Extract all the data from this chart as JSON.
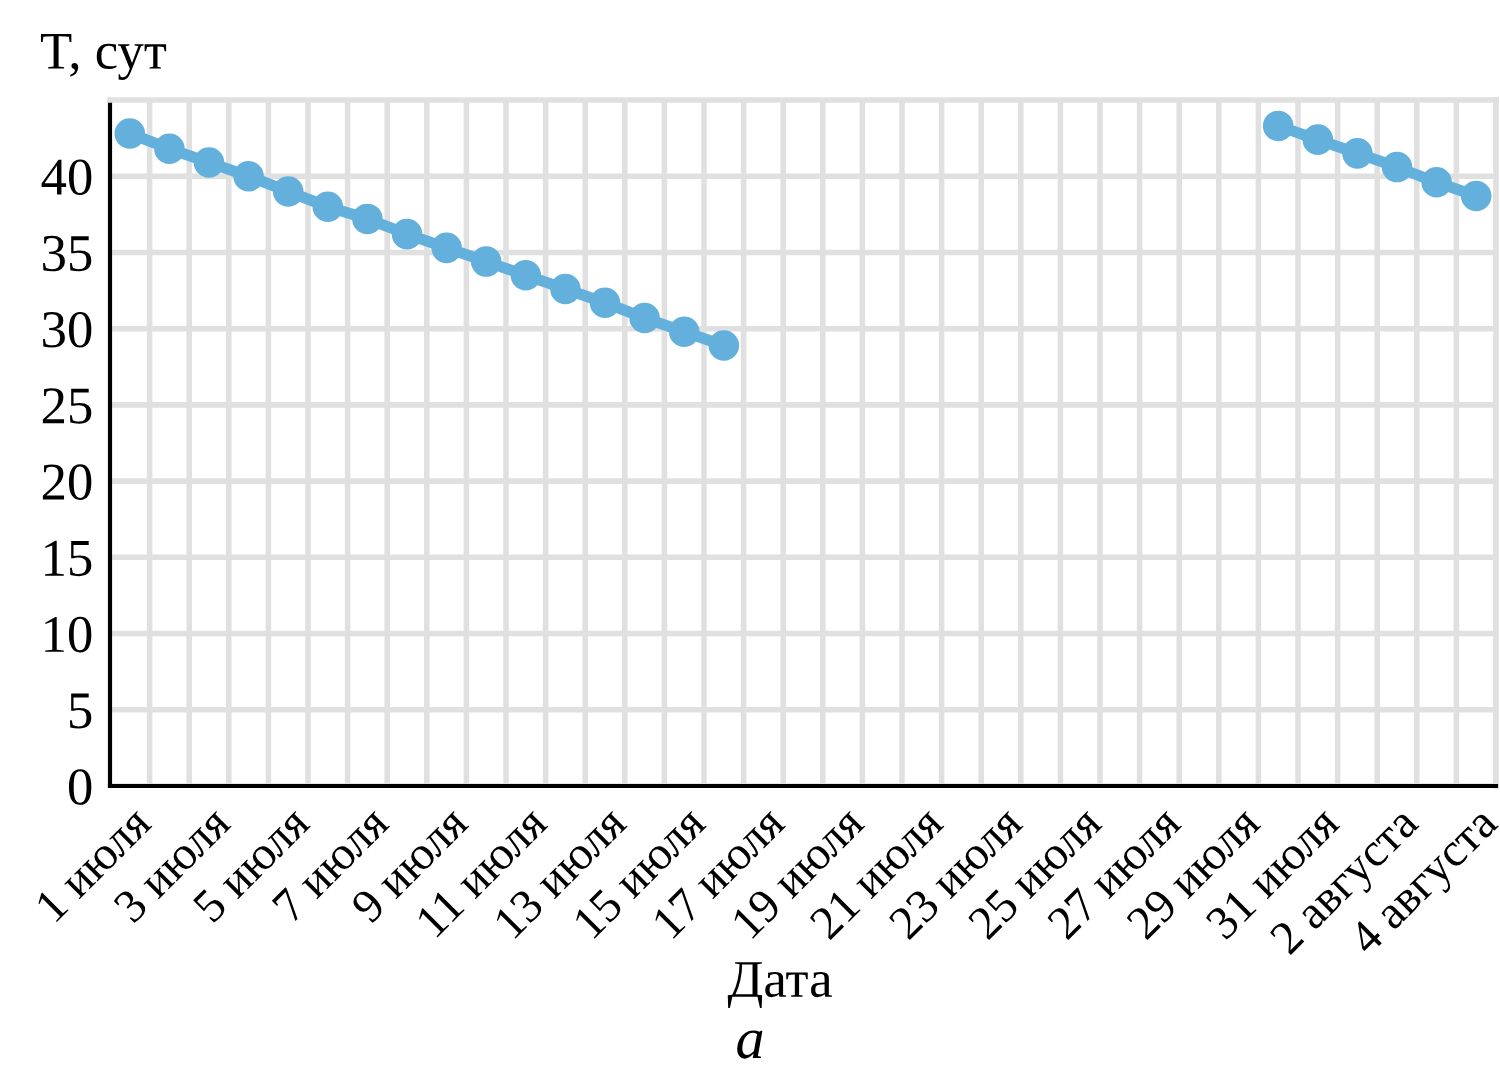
{
  "chart_data": {
    "type": "line",
    "ylabel": "T, сут",
    "xlabel": "Дата",
    "annotations": [
      "а"
    ],
    "categories": [
      "1 июля",
      null,
      "3 июля",
      null,
      "5 июля",
      null,
      "7 июля",
      null,
      "9 июля",
      null,
      "11 июля",
      null,
      "13 июля",
      null,
      "15 июля",
      null,
      "17 июля",
      null,
      "19 июля",
      null,
      "21 июля",
      null,
      "23 июля",
      null,
      "25 июля",
      null,
      "27 июля",
      null,
      "29 июля",
      null,
      "31 июля",
      null,
      "2 августа",
      null,
      "4 августа"
    ],
    "series": [
      {
        "color": "#64b0dc",
        "values": [
          42.8,
          41.8,
          40.9,
          40.0,
          39.0,
          38.0,
          37.2,
          36.2,
          35.3,
          34.4,
          33.5,
          32.6,
          31.7,
          30.7,
          29.8,
          28.9,
          null,
          null,
          null,
          null,
          null,
          null,
          null,
          null,
          null,
          null,
          null,
          null,
          null,
          43.3,
          42.4,
          41.5,
          40.6,
          39.6,
          38.7
        ]
      }
    ],
    "ylim": [
      0,
      45
    ],
    "yticks": [
      0,
      5,
      10,
      15,
      20,
      25,
      30,
      35,
      40
    ],
    "grid": true,
    "marker": "circle",
    "line_style": "solid"
  }
}
